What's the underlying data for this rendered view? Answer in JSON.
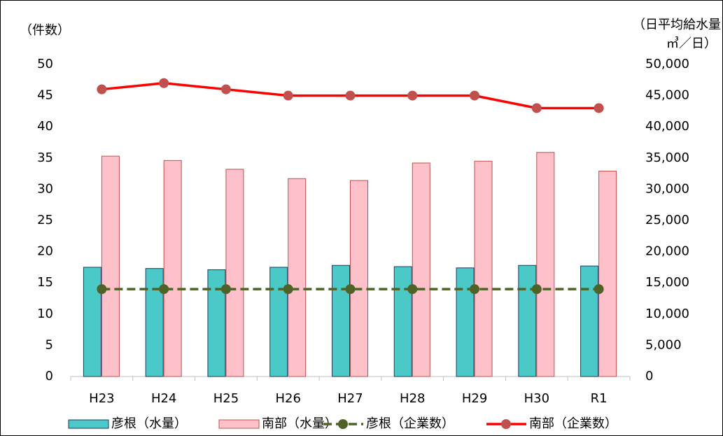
{
  "chart_data": {
    "type": "combo",
    "y_label": "（件数）",
    "y2_label": [
      "（日平均給水量",
      "㎥／日）"
    ],
    "categories": [
      "H23",
      "H24",
      "H25",
      "H26",
      "H27",
      "H28",
      "H29",
      "H30",
      "R1"
    ],
    "ylim": [
      0,
      50
    ],
    "yticks": [
      0,
      5,
      10,
      15,
      20,
      25,
      30,
      35,
      40,
      45,
      50
    ],
    "y2lim": [
      0,
      50000
    ],
    "y2ticks": [
      0,
      {
        "value": 5000,
        "label": "5,000"
      },
      {
        "value": 10000,
        "label": "10,000"
      },
      {
        "value": 15000,
        "label": "15,000"
      },
      {
        "value": 20000,
        "label": "20,000"
      },
      {
        "value": 25000,
        "label": "25,000"
      },
      {
        "value": 30000,
        "label": "30,000"
      },
      {
        "value": 35000,
        "label": "35,000"
      },
      {
        "value": 40000,
        "label": "40,000"
      },
      {
        "value": 45000,
        "label": "45,000"
      },
      {
        "value": 50000,
        "label": "50,000"
      }
    ],
    "grid": false,
    "series": [
      {
        "name": "彦根（水量）",
        "type": "bar",
        "axis": "y2",
        "color": "#4bc9c6",
        "values": [
          17500,
          17300,
          17100,
          17500,
          17800,
          17600,
          17400,
          17800,
          17700
        ]
      },
      {
        "name": "南部（水量）",
        "type": "bar",
        "axis": "y2",
        "color": "#ffc1c9",
        "values": [
          35300,
          34600,
          33200,
          31700,
          31400,
          34200,
          34500,
          35900,
          32900
        ]
      },
      {
        "name": "彦根（企業数）",
        "type": "line",
        "dashed": true,
        "color": "#4f6228",
        "values": [
          14,
          14,
          14,
          14,
          14,
          14,
          14,
          14,
          14
        ]
      },
      {
        "name": "南部（企業数）",
        "type": "line",
        "color": "#ff0000",
        "marker_color": "#c0504d",
        "values": [
          46,
          47,
          46,
          45,
          45,
          45,
          45,
          43,
          43
        ]
      }
    ]
  }
}
